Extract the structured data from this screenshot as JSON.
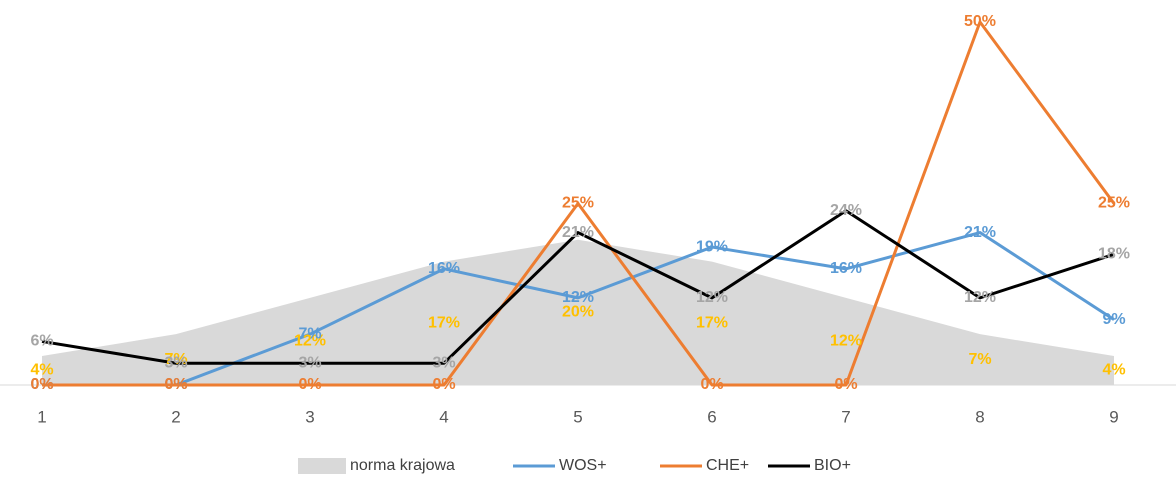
{
  "chart_data": {
    "type": "line",
    "categories": [
      "1",
      "2",
      "3",
      "4",
      "5",
      "6",
      "7",
      "8",
      "9"
    ],
    "ylim": [
      0,
      50
    ],
    "series": [
      {
        "name": "norma krajowa",
        "type": "area",
        "color": "#d9d9d9",
        "label_color": "#ffc000",
        "values": [
          4,
          7,
          12,
          17,
          20,
          17,
          12,
          7,
          4
        ],
        "value_labels": [
          "4%",
          "7%",
          "12%",
          "17%",
          "20%",
          "17%",
          "12%",
          "7%",
          "4%"
        ]
      },
      {
        "name": "WOS+",
        "type": "line",
        "color": "#5b9bd5",
        "label_color": "#5b9bd5",
        "values": [
          0,
          0,
          7,
          16,
          12,
          19,
          16,
          21,
          9
        ],
        "value_labels": [
          "0%",
          "0%",
          "7%",
          "16%",
          "12%",
          "19%",
          "16%",
          "21%",
          "9%"
        ]
      },
      {
        "name": "CHE+",
        "type": "line",
        "color": "#ed7d31",
        "label_color": "#ed7d31",
        "values": [
          0,
          0,
          0,
          0,
          25,
          0,
          0,
          50,
          25
        ],
        "value_labels": [
          "0%",
          "0%",
          "0%",
          "0%",
          "25%",
          "0%",
          "0%",
          "50%",
          "25%"
        ]
      },
      {
        "name": "BIO+",
        "type": "line",
        "color": "#000000",
        "label_color": "#a5a5a5",
        "values": [
          6,
          3,
          3,
          3,
          21,
          12,
          24,
          12,
          18
        ],
        "value_labels": [
          "6%",
          "3%",
          "3%",
          "3%",
          "21%",
          "12%",
          "24%",
          "12%",
          "18%"
        ]
      }
    ]
  }
}
